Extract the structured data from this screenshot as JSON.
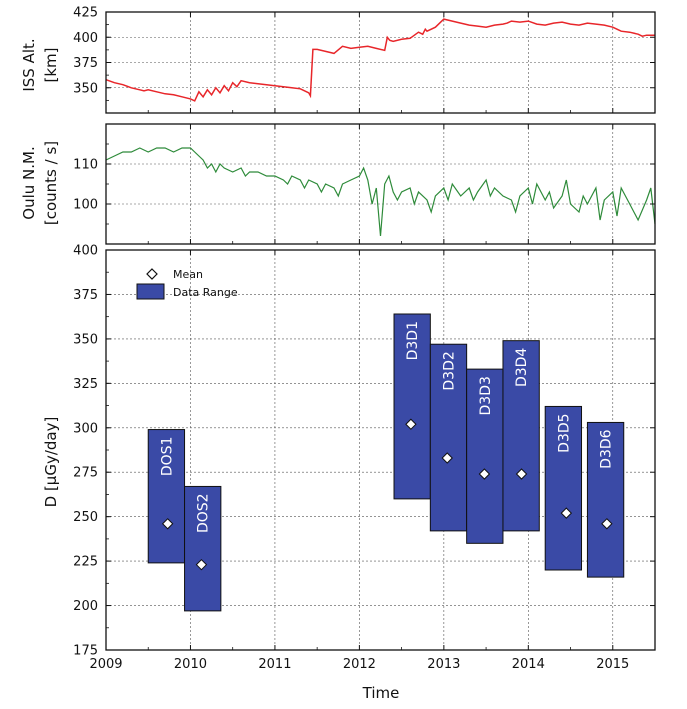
{
  "chart_data": [
    {
      "type": "line",
      "ylabel": [
        "ISS Alt.",
        "[km]"
      ],
      "ylim": [
        325,
        425
      ],
      "xlim": [
        2009,
        2015.5
      ],
      "yticks": [
        350,
        375,
        400,
        425
      ],
      "grid": true,
      "color": "#e8262a",
      "series": [
        {
          "x": [
            2009.0,
            2009.1,
            2009.2,
            2009.3,
            2009.4,
            2009.45,
            2009.5,
            2009.6,
            2009.7,
            2009.8,
            2009.9,
            2010.0,
            2010.05,
            2010.1,
            2010.15,
            2010.2,
            2010.25,
            2010.3,
            2010.35,
            2010.4,
            2010.45,
            2010.5,
            2010.55,
            2010.6,
            2010.7,
            2010.8,
            2010.9,
            2011.0,
            2011.1,
            2011.2,
            2011.3,
            2011.35,
            2011.4,
            2011.42,
            2011.45,
            2011.5,
            2011.6,
            2011.7,
            2011.8,
            2011.9,
            2012.0,
            2012.1,
            2012.2,
            2012.3,
            2012.33,
            2012.36,
            2012.4,
            2012.5,
            2012.6,
            2012.7,
            2012.75,
            2012.78,
            2012.8,
            2012.9,
            2013.0,
            2013.1,
            2013.2,
            2013.25,
            2013.3,
            2013.4,
            2013.5,
            2013.6,
            2013.7,
            2013.75,
            2013.8,
            2013.9,
            2014.0,
            2014.1,
            2014.2,
            2014.3,
            2014.4,
            2014.5,
            2014.6,
            2014.7,
            2014.8,
            2014.9,
            2015.0,
            2015.05,
            2015.1,
            2015.2,
            2015.3,
            2015.35,
            2015.4,
            2015.5
          ],
          "values": [
            358,
            355,
            353,
            350,
            348,
            347,
            348,
            346,
            344,
            343,
            341,
            339,
            337,
            346,
            341,
            348,
            343,
            350,
            345,
            352,
            347,
            355,
            351,
            357,
            355,
            354,
            353,
            352,
            351,
            350,
            349,
            347,
            345,
            342,
            388,
            388,
            386,
            384,
            391,
            389,
            390,
            391,
            389,
            387,
            400,
            397,
            396,
            398,
            399,
            405,
            403,
            408,
            406,
            410,
            418,
            416,
            414,
            413,
            412,
            411,
            410,
            412,
            413,
            414,
            416,
            415,
            416,
            413,
            412,
            414,
            415,
            413,
            412,
            414,
            413,
            412,
            410,
            408,
            406,
            405,
            403,
            401,
            402,
            402
          ]
        }
      ]
    },
    {
      "type": "line",
      "ylabel": [
        "Oulu N.M.",
        "[counts / s]"
      ],
      "ylim": [
        90,
        120
      ],
      "xlim": [
        2009,
        2015.5
      ],
      "yticks": [
        100,
        110
      ],
      "grid": true,
      "color": "#2e8b3a",
      "series": [
        {
          "x": [
            2009.0,
            2009.1,
            2009.2,
            2009.3,
            2009.4,
            2009.5,
            2009.6,
            2009.7,
            2009.8,
            2009.9,
            2010.0,
            2010.05,
            2010.1,
            2010.15,
            2010.2,
            2010.25,
            2010.3,
            2010.35,
            2010.4,
            2010.5,
            2010.6,
            2010.65,
            2010.7,
            2010.8,
            2010.9,
            2011.0,
            2011.1,
            2011.15,
            2011.2,
            2011.3,
            2011.35,
            2011.4,
            2011.5,
            2011.55,
            2011.6,
            2011.7,
            2011.75,
            2011.8,
            2011.9,
            2012.0,
            2012.05,
            2012.1,
            2012.15,
            2012.2,
            2012.25,
            2012.3,
            2012.35,
            2012.4,
            2012.45,
            2012.5,
            2012.6,
            2012.65,
            2012.7,
            2012.8,
            2012.85,
            2012.9,
            2013.0,
            2013.05,
            2013.1,
            2013.2,
            2013.3,
            2013.35,
            2013.4,
            2013.5,
            2013.55,
            2013.6,
            2013.7,
            2013.8,
            2013.85,
            2013.9,
            2014.0,
            2014.05,
            2014.1,
            2014.2,
            2014.25,
            2014.3,
            2014.4,
            2014.45,
            2014.5,
            2014.6,
            2014.65,
            2014.7,
            2014.8,
            2014.85,
            2014.9,
            2015.0,
            2015.05,
            2015.1,
            2015.2,
            2015.25,
            2015.3,
            2015.4,
            2015.45,
            2015.5
          ],
          "values": [
            111,
            112,
            113,
            113,
            114,
            113,
            114,
            114,
            113,
            114,
            114,
            113,
            112,
            111,
            109,
            110,
            108,
            110,
            109,
            108,
            109,
            107,
            108,
            108,
            107,
            107,
            106,
            105,
            107,
            106,
            104,
            106,
            105,
            103,
            105,
            104,
            102,
            105,
            106,
            107,
            109,
            106,
            100,
            104,
            92,
            105,
            107,
            103,
            101,
            103,
            104,
            100,
            103,
            101,
            98,
            102,
            104,
            101,
            105,
            102,
            104,
            101,
            103,
            106,
            102,
            104,
            102,
            101,
            98,
            102,
            104,
            100,
            105,
            101,
            103,
            99,
            102,
            106,
            100,
            98,
            102,
            100,
            104,
            96,
            101,
            103,
            97,
            104,
            100,
            98,
            96,
            101,
            104,
            95
          ]
        }
      ]
    },
    {
      "type": "bar",
      "subtype": "floating-range",
      "xlabel": "Time",
      "ylabel": "D [µGy/day]",
      "ylim": [
        175,
        400
      ],
      "xlim": [
        2009,
        2015.5
      ],
      "yticks": [
        175,
        200,
        225,
        250,
        275,
        300,
        325,
        350,
        375,
        400
      ],
      "xticks": [
        "2009",
        "2010",
        "2011",
        "2012",
        "2013",
        "2014",
        "2015"
      ],
      "grid": true,
      "bar_color": "#3a4aa6",
      "legend": {
        "placement": "top-left",
        "mean_label": "Mean",
        "range_label": "Data Range"
      },
      "bars": [
        {
          "label": "DOS1",
          "x_start": 2009.5,
          "x_end": 2009.93,
          "low": 224,
          "high": 299,
          "mean": 246,
          "mean_x": 2009.73
        },
        {
          "label": "DOS2",
          "x_start": 2009.93,
          "x_end": 2010.36,
          "low": 197,
          "high": 267,
          "mean": 223,
          "mean_x": 2010.13
        },
        {
          "label": "D3D1",
          "x_start": 2012.41,
          "x_end": 2012.84,
          "low": 260,
          "high": 364,
          "mean": 302,
          "mean_x": 2012.61
        },
        {
          "label": "D3D2",
          "x_start": 2012.84,
          "x_end": 2013.27,
          "low": 242,
          "high": 347,
          "mean": 283,
          "mean_x": 2013.04
        },
        {
          "label": "D3D3",
          "x_start": 2013.27,
          "x_end": 2013.7,
          "low": 235,
          "high": 333,
          "mean": 274,
          "mean_x": 2013.48
        },
        {
          "label": "D3D4",
          "x_start": 2013.7,
          "x_end": 2014.13,
          "low": 242,
          "high": 349,
          "mean": 274,
          "mean_x": 2013.92
        },
        {
          "label": "D3D5",
          "x_start": 2014.2,
          "x_end": 2014.63,
          "low": 220,
          "high": 312,
          "mean": 252,
          "mean_x": 2014.45
        },
        {
          "label": "D3D6",
          "x_start": 2014.7,
          "x_end": 2015.13,
          "low": 216,
          "high": 303,
          "mean": 246,
          "mean_x": 2014.93
        }
      ]
    }
  ]
}
